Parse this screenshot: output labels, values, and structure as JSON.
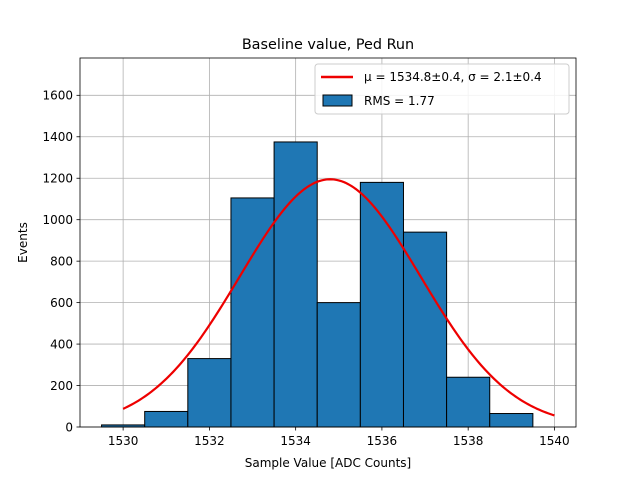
{
  "chart_data": {
    "type": "bar",
    "title": "Baseline value, Ped Run",
    "xlabel": "Sample Value [ADC Counts]",
    "ylabel": "Events",
    "xlim": [
      1529,
      1540.5
    ],
    "ylim": [
      0,
      1780
    ],
    "xticks": [
      1530,
      1532,
      1534,
      1536,
      1538,
      1540
    ],
    "yticks": [
      0,
      200,
      400,
      600,
      800,
      1000,
      1200,
      1400,
      1600
    ],
    "grid": true,
    "legend_position": "top-right",
    "histogram": {
      "name": "RMS = 1.77",
      "color": "#1f77b4",
      "edge_color": "#000000",
      "bin_edges": [
        1529.5,
        1530.5,
        1531.5,
        1532.5,
        1533.5,
        1534.5,
        1535.5,
        1536.5,
        1537.5,
        1538.5,
        1539.5
      ],
      "counts": [
        10,
        75,
        330,
        1105,
        1375,
        600,
        1180,
        940,
        240,
        65
      ]
    },
    "fit": {
      "name_prefix": "μ = 1534.8±0.4, σ = 2.1±0.4",
      "color": "#ee0000",
      "function": "gaussian",
      "mu": 1534.8,
      "sigma": 2.1,
      "amplitude": 1195,
      "x_range": [
        1530,
        1540
      ]
    }
  }
}
